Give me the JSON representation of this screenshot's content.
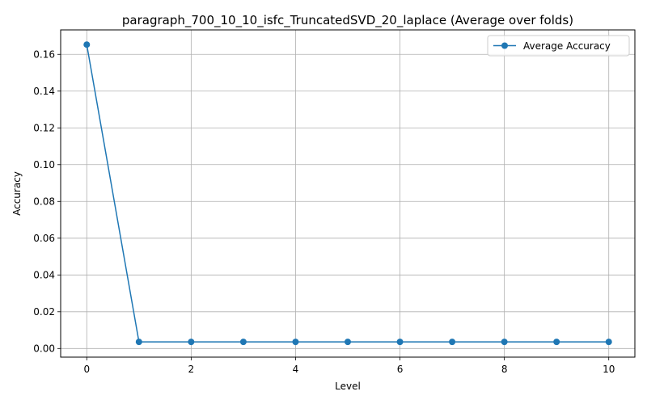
{
  "chart_data": {
    "type": "line",
    "title": "paragraph_700_10_10_isfc_TruncatedSVD_20_laplace (Average over folds)",
    "xlabel": "Level",
    "ylabel": "Accuracy",
    "xlim": [
      -0.5,
      10.5
    ],
    "ylim": [
      -0.0047,
      0.1733
    ],
    "xticks": [
      0,
      2,
      4,
      6,
      8,
      10
    ],
    "xtick_labels": [
      "0",
      "2",
      "4",
      "6",
      "8",
      "10"
    ],
    "yticks": [
      0.0,
      0.02,
      0.04,
      0.06,
      0.08,
      0.1,
      0.12,
      0.14,
      0.16
    ],
    "ytick_labels": [
      "0.00",
      "0.02",
      "0.04",
      "0.06",
      "0.08",
      "0.10",
      "0.12",
      "0.14",
      "0.16"
    ],
    "grid": true,
    "legend_position": "upper right",
    "series": [
      {
        "name": "Average Accuracy",
        "color": "#1f77b4",
        "marker": "circle",
        "x": [
          0,
          1,
          2,
          3,
          4,
          5,
          6,
          7,
          8,
          9,
          10
        ],
        "y": [
          0.1653,
          0.0036,
          0.0036,
          0.0036,
          0.0036,
          0.0036,
          0.0036,
          0.0036,
          0.0036,
          0.0036,
          0.0036
        ]
      }
    ]
  }
}
